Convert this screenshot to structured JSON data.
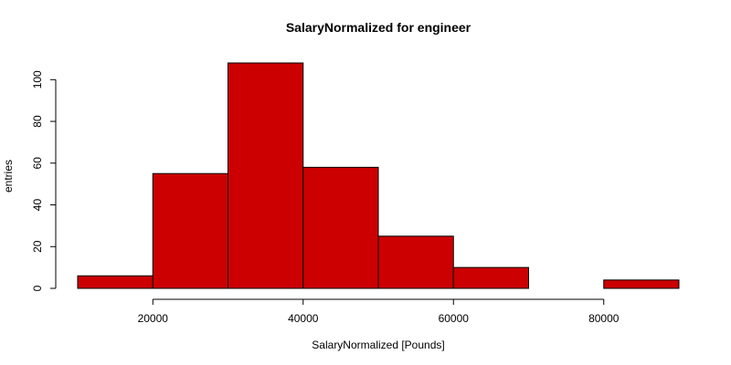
{
  "chart_data": {
    "type": "bar",
    "title": "SalaryNormalized for engineer",
    "xlabel": "SalaryNormalized [Pounds]",
    "ylabel": "entries",
    "bins": [
      {
        "from": 10000,
        "to": 20000,
        "count": 6
      },
      {
        "from": 20000,
        "to": 30000,
        "count": 55
      },
      {
        "from": 30000,
        "to": 40000,
        "count": 108
      },
      {
        "from": 40000,
        "to": 50000,
        "count": 58
      },
      {
        "from": 50000,
        "to": 60000,
        "count": 25
      },
      {
        "from": 60000,
        "to": 70000,
        "count": 10
      },
      {
        "from": 70000,
        "to": 80000,
        "count": 0
      },
      {
        "from": 80000,
        "to": 90000,
        "count": 4
      }
    ],
    "xlim": [
      10000,
      90000
    ],
    "ylim": [
      0,
      108
    ],
    "x_ticks": [
      20000,
      40000,
      60000,
      80000
    ],
    "y_ticks": [
      0,
      20,
      40,
      60,
      80,
      100
    ],
    "x_tick_labels": [
      "20000",
      "40000",
      "60000",
      "80000"
    ],
    "y_tick_labels": [
      "0",
      "20",
      "40",
      "60",
      "80",
      "100"
    ],
    "bar_color": "#cc0000",
    "grid": false,
    "legend": "none"
  }
}
